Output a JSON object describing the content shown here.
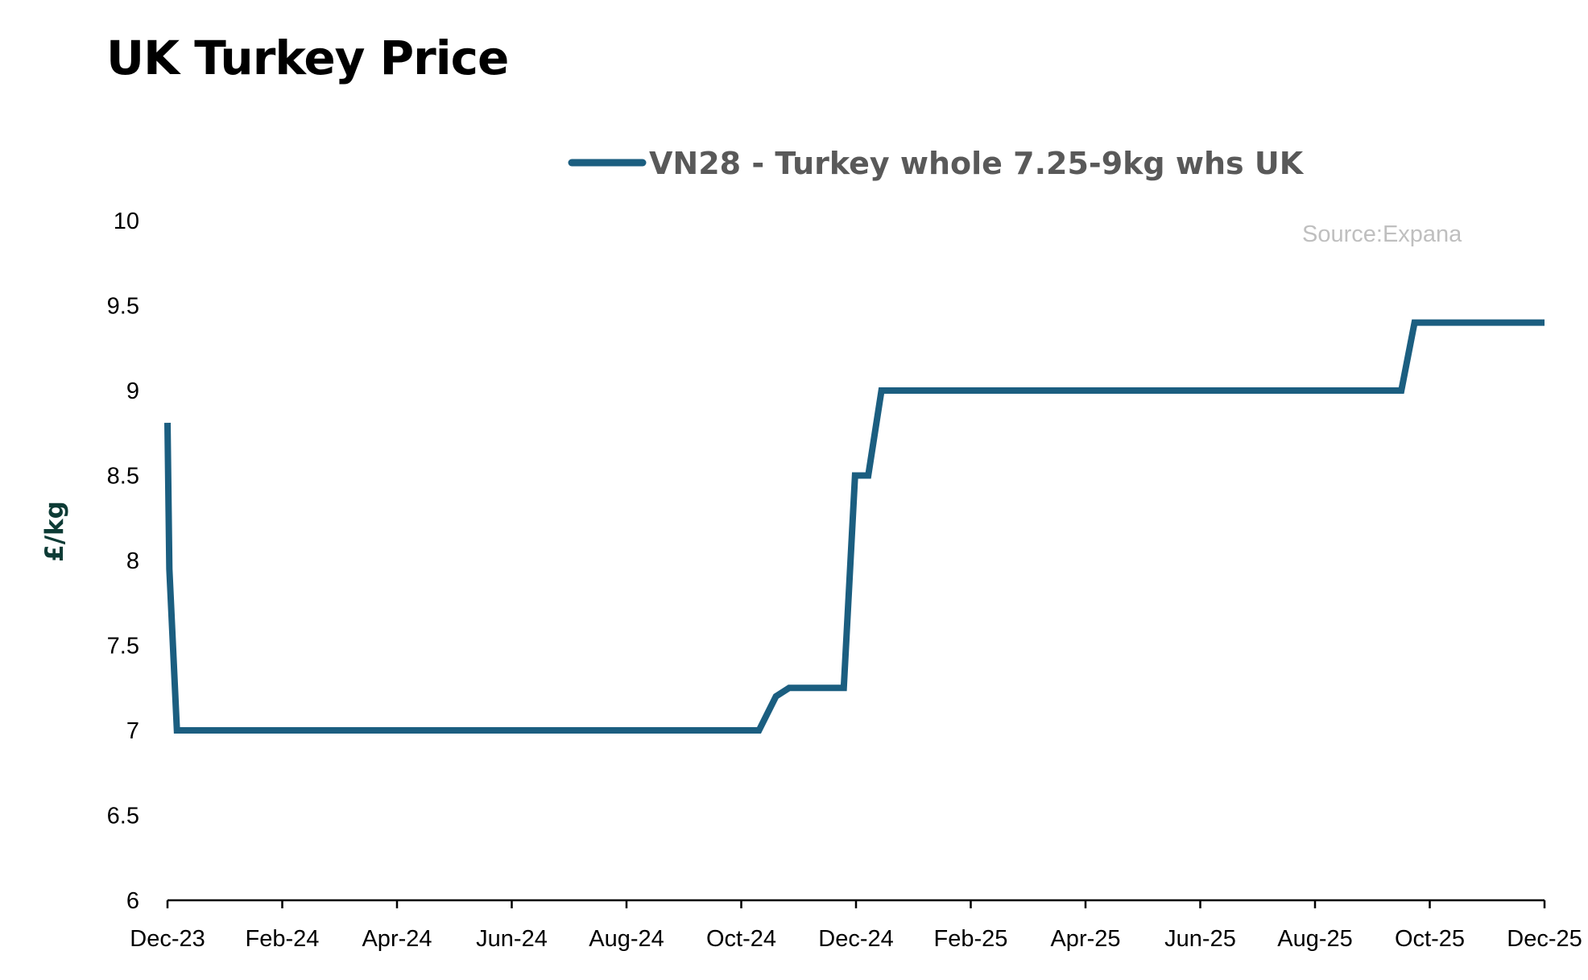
{
  "chart_data": {
    "type": "line",
    "title": "UK Turkey Price",
    "xlabel": "",
    "ylabel": "£/kg",
    "source": "Source:Expana",
    "ylim": [
      6,
      10
    ],
    "yticks": [
      "6",
      "6.5",
      "7",
      "7.5",
      "8",
      "8.5",
      "9",
      "9.5",
      "10"
    ],
    "xticks": [
      "Dec-23",
      "Feb-24",
      "Apr-24",
      "Jun-24",
      "Aug-24",
      "Oct-24",
      "Dec-24",
      "Feb-25",
      "Apr-25",
      "Jun-25",
      "Aug-25",
      "Oct-25",
      "Dec-25"
    ],
    "xlim": [
      "2023-12-01",
      "2025-12-01"
    ],
    "grid": false,
    "legend_position": "top-center",
    "series": [
      {
        "name": "VN28 - Turkey whole 7.25-9kg whs UK",
        "color": "#1b5e80",
        "points": [
          [
            "2023-12-01",
            8.81
          ],
          [
            "2023-12-02",
            7.95
          ],
          [
            "2023-12-06",
            7.0
          ],
          [
            "2024-10-10",
            7.0
          ],
          [
            "2024-10-19",
            7.2
          ],
          [
            "2024-10-26",
            7.25
          ],
          [
            "2024-11-24",
            7.25
          ],
          [
            "2024-11-30",
            8.5
          ],
          [
            "2024-12-07",
            8.5
          ],
          [
            "2024-12-14",
            9.0
          ],
          [
            "2025-09-16",
            9.0
          ],
          [
            "2025-09-23",
            9.4
          ],
          [
            "2025-12-01",
            9.4
          ]
        ]
      }
    ]
  }
}
